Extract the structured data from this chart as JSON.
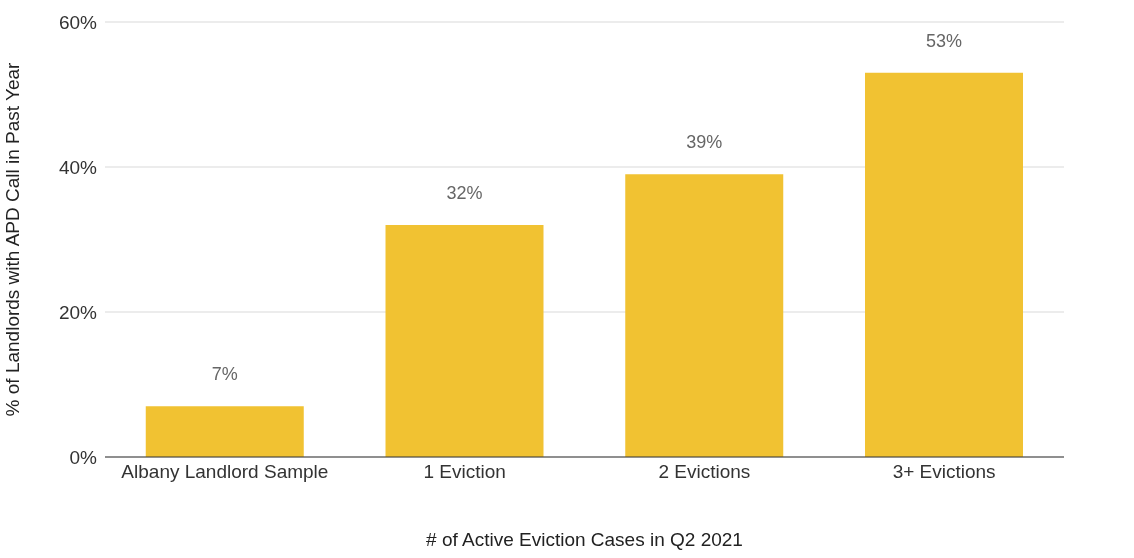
{
  "chart_data": {
    "type": "bar",
    "xlabel": "# of Active Eviction Cases in Q2 2021",
    "ylabel": "% of Landlords with APD Call in Past Year",
    "categories": [
      "Albany Landlord Sample",
      "1 Eviction",
      "2 Evictions",
      "3+ Evictions"
    ],
    "values": [
      7,
      32,
      39,
      53
    ],
    "color": "#f1c232",
    "value_labels": [
      "7%",
      "32%",
      "39%",
      "53%"
    ],
    "ylim": [
      0,
      60
    ],
    "yticks": [
      {
        "value": 0,
        "label": "0%"
      },
      {
        "value": 20,
        "label": "20%"
      },
      {
        "value": 40,
        "label": "40%"
      },
      {
        "value": 60,
        "label": "60%"
      }
    ],
    "grid": "y",
    "legend": false
  }
}
